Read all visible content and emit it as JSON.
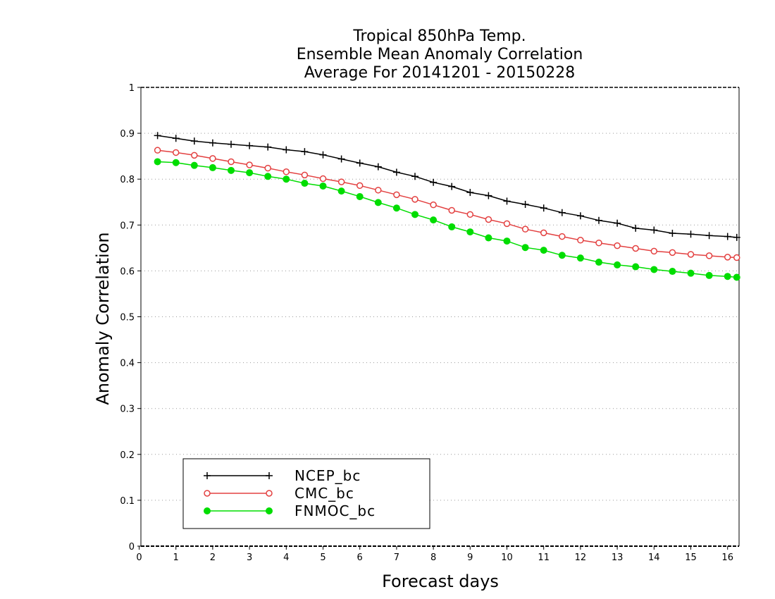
{
  "chart_data": {
    "type": "line",
    "title_lines": [
      "Tropical 850hPa Temp.",
      "Ensemble Mean Anomaly Correlation",
      "Average For 20141201 - 20150228"
    ],
    "xlabel": "Forecast days",
    "ylabel": "Anomaly Correlation",
    "xlim": [
      0,
      16.25
    ],
    "ylim": [
      0,
      1
    ],
    "x_ticks": [
      0,
      1,
      2,
      3,
      4,
      5,
      6,
      7,
      8,
      9,
      10,
      11,
      12,
      13,
      14,
      15,
      16
    ],
    "y_ticks": [
      0,
      0.1,
      0.2,
      0.3,
      0.4,
      0.5,
      0.6,
      0.7,
      0.8,
      0.9,
      1
    ],
    "y_tick_labels": [
      "0",
      "0.1",
      "0.2",
      "0.3",
      "0.4",
      "0.5",
      "0.6",
      "0.7",
      "0.8",
      "0.9",
      "1"
    ],
    "grid": "horizontal dotted",
    "legend_position": "bottom-left",
    "x": [
      0.5,
      1.0,
      1.5,
      2.0,
      2.5,
      3.0,
      3.5,
      4.0,
      4.5,
      5.0,
      5.5,
      6.0,
      6.5,
      7.0,
      7.5,
      8.0,
      8.5,
      9.0,
      9.5,
      10.0,
      10.5,
      11.0,
      11.5,
      12.0,
      12.5,
      13.0,
      13.5,
      14.0,
      14.5,
      15.0,
      15.5,
      16.0,
      16.25
    ],
    "series": [
      {
        "name": "NCEP_bc",
        "color": "#000000",
        "marker": "plus",
        "values": [
          0.895,
          0.889,
          0.883,
          0.879,
          0.876,
          0.873,
          0.87,
          0.864,
          0.86,
          0.853,
          0.844,
          0.835,
          0.827,
          0.815,
          0.806,
          0.793,
          0.784,
          0.771,
          0.764,
          0.752,
          0.745,
          0.737,
          0.727,
          0.72,
          0.71,
          0.704,
          0.693,
          0.689,
          0.682,
          0.68,
          0.677,
          0.675,
          0.673
        ]
      },
      {
        "name": "CMC_bc",
        "color": "#e34040",
        "marker": "open-circle",
        "values": [
          0.863,
          0.858,
          0.852,
          0.845,
          0.838,
          0.831,
          0.824,
          0.816,
          0.809,
          0.801,
          0.794,
          0.786,
          0.776,
          0.766,
          0.756,
          0.744,
          0.732,
          0.723,
          0.712,
          0.703,
          0.691,
          0.683,
          0.675,
          0.667,
          0.661,
          0.655,
          0.649,
          0.643,
          0.64,
          0.636,
          0.633,
          0.63,
          0.629
        ]
      },
      {
        "name": "FNMOC_bc",
        "color": "#00dd00",
        "marker": "filled-circle",
        "values": [
          0.838,
          0.836,
          0.83,
          0.825,
          0.819,
          0.814,
          0.806,
          0.8,
          0.791,
          0.785,
          0.774,
          0.762,
          0.749,
          0.737,
          0.723,
          0.711,
          0.696,
          0.685,
          0.672,
          0.665,
          0.651,
          0.645,
          0.634,
          0.628,
          0.619,
          0.613,
          0.609,
          0.603,
          0.599,
          0.595,
          0.59,
          0.588,
          0.586
        ]
      }
    ]
  }
}
